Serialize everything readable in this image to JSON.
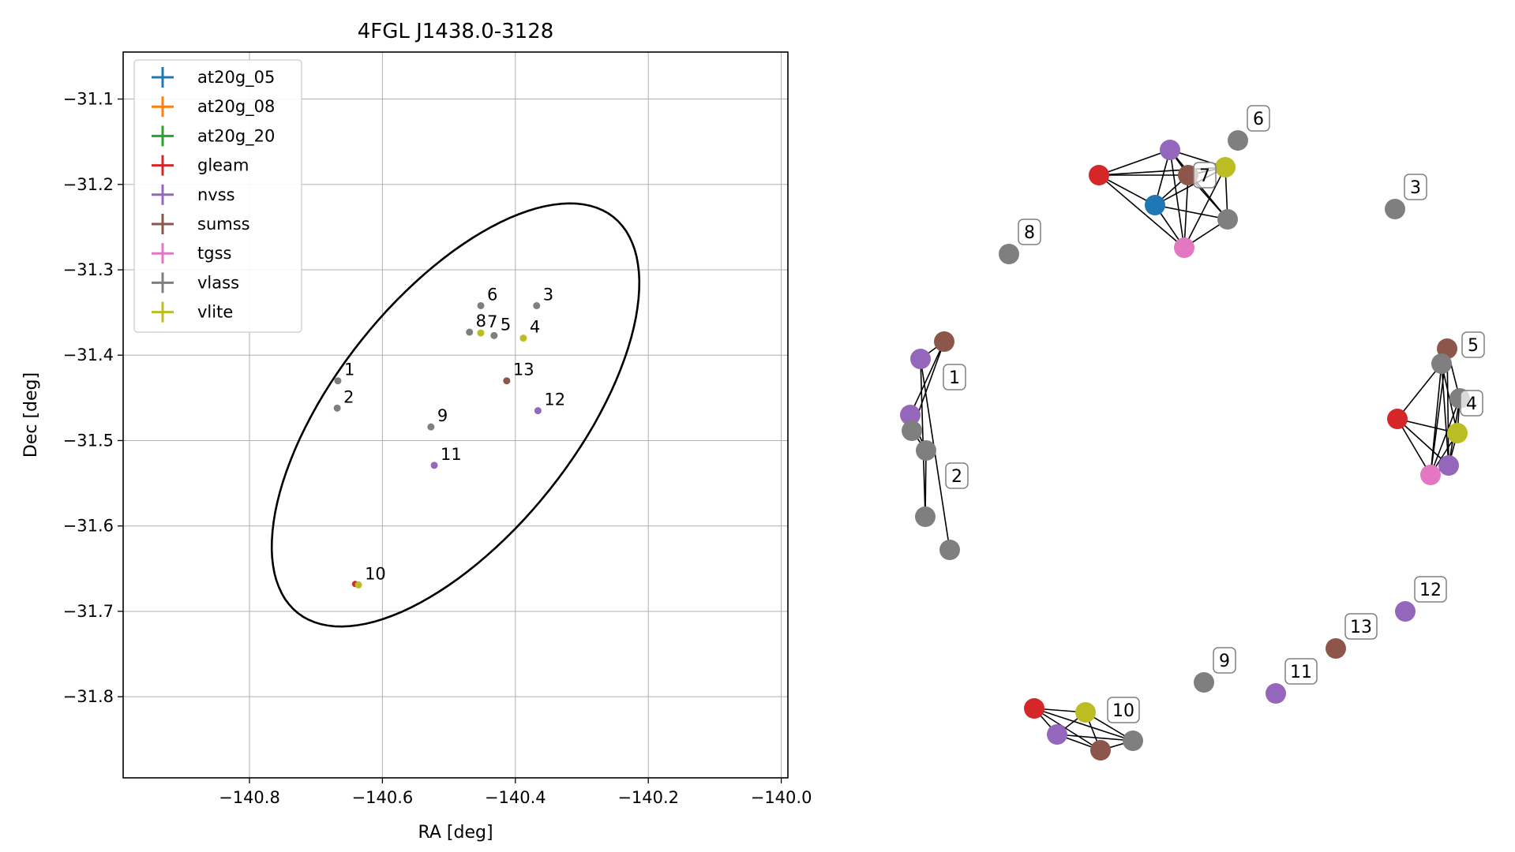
{
  "chart_data": [
    {
      "type": "scatter",
      "title": "4FGL J1438.0-3128",
      "xlabel": "RA [deg]",
      "ylabel": "Dec [deg]",
      "xlim": [
        -140.99,
        -139.99
      ],
      "ylim": [
        -31.895,
        -31.045
      ],
      "xticks": [
        -140.8,
        -140.6,
        -140.4,
        -140.2,
        -140.0
      ],
      "xtick_labels": [
        "−140.8",
        "−140.6",
        "−140.4",
        "−140.2",
        "−140.0"
      ],
      "yticks": [
        -31.1,
        -31.2,
        -31.3,
        -31.4,
        -31.5,
        -31.6,
        -31.7,
        -31.8
      ],
      "ytick_labels": [
        "−31.1",
        "−31.2",
        "−31.3",
        "−31.4",
        "−31.5",
        "−31.6",
        "−31.7",
        "−31.8"
      ],
      "grid": true,
      "legend_position": "top-left",
      "legend": [
        {
          "name": "at20g_05",
          "color": "#1f77b4"
        },
        {
          "name": "at20g_08",
          "color": "#ff7f0e"
        },
        {
          "name": "at20g_20",
          "color": "#2ca02c"
        },
        {
          "name": "gleam",
          "color": "#d62728"
        },
        {
          "name": "nvss",
          "color": "#9467bd"
        },
        {
          "name": "sumss",
          "color": "#8c564b"
        },
        {
          "name": "tgss",
          "color": "#e377c2"
        },
        {
          "name": "vlass",
          "color": "#7f7f7f"
        },
        {
          "name": "vlite",
          "color": "#bcbd22"
        }
      ],
      "ellipse": {
        "center": [
          -140.49,
          -31.47
        ],
        "semi_major": 0.335,
        "semi_minor": 0.16,
        "angle_deg": 40
      },
      "points": [
        {
          "label": "1",
          "x": -140.667,
          "y": -31.43,
          "color": "#7f7f7f"
        },
        {
          "label": "2",
          "x": -140.668,
          "y": -31.462,
          "color": "#7f7f7f"
        },
        {
          "label": "3",
          "x": -140.368,
          "y": -31.342,
          "color": "#7f7f7f"
        },
        {
          "label": "4",
          "x": -140.388,
          "y": -31.38,
          "color": "#bcbd22"
        },
        {
          "label": "5",
          "x": -140.432,
          "y": -31.377,
          "color": "#7f7f7f"
        },
        {
          "label": "6",
          "x": -140.452,
          "y": -31.342,
          "color": "#7f7f7f"
        },
        {
          "label": "7",
          "x": -140.452,
          "y": -31.374,
          "color": "#bcbd22"
        },
        {
          "label": "8",
          "x": -140.469,
          "y": -31.373,
          "color": "#7f7f7f"
        },
        {
          "label": "9",
          "x": -140.527,
          "y": -31.484,
          "color": "#7f7f7f"
        },
        {
          "label": "10",
          "x": -140.636,
          "y": -31.669,
          "color": "#bcbd22"
        },
        {
          "label": "11",
          "x": -140.522,
          "y": -31.529,
          "color": "#9467bd"
        },
        {
          "label": "12",
          "x": -140.366,
          "y": -31.465,
          "color": "#9467bd"
        },
        {
          "label": "13",
          "x": -140.413,
          "y": -31.43,
          "color": "#8c564b"
        }
      ],
      "extra_points": [
        {
          "x": -140.641,
          "y": -31.668,
          "color": "#d62728"
        }
      ]
    },
    {
      "type": "network",
      "nodes": [
        {
          "id": "n7_red",
          "color": "#d62728"
        },
        {
          "id": "n7_purple",
          "color": "#9467bd"
        },
        {
          "id": "n7_brown",
          "color": "#8c564b"
        },
        {
          "id": "n7_yellow",
          "color": "#bcbd22"
        },
        {
          "id": "n7_blue",
          "color": "#1f77b4"
        },
        {
          "id": "n7_gray",
          "color": "#7f7f7f"
        },
        {
          "id": "n7_pink",
          "color": "#e377c2"
        },
        {
          "id": "n6",
          "color": "#7f7f7f",
          "label": "6"
        },
        {
          "id": "n3",
          "color": "#7f7f7f",
          "label": "3"
        },
        {
          "id": "n8",
          "color": "#7f7f7f",
          "label": "8"
        },
        {
          "id": "n1_brown",
          "color": "#8c564b"
        },
        {
          "id": "n1_purple",
          "color": "#9467bd"
        },
        {
          "id": "n2_purple",
          "color": "#9467bd"
        },
        {
          "id": "n1_gray",
          "color": "#7f7f7f"
        },
        {
          "id": "n2_gray",
          "color": "#7f7f7f"
        },
        {
          "id": "n2_gray_b",
          "color": "#7f7f7f"
        },
        {
          "id": "n1_gray_b",
          "color": "#7f7f7f"
        },
        {
          "id": "n5_brown",
          "color": "#8c564b"
        },
        {
          "id": "n5_gray",
          "color": "#7f7f7f"
        },
        {
          "id": "n4_gray",
          "color": "#7f7f7f"
        },
        {
          "id": "n4_red",
          "color": "#d62728"
        },
        {
          "id": "n4_yellow",
          "color": "#bcbd22"
        },
        {
          "id": "n4_purple",
          "color": "#9467bd"
        },
        {
          "id": "n4_pink",
          "color": "#e377c2"
        },
        {
          "id": "n12",
          "color": "#9467bd",
          "label": "12"
        },
        {
          "id": "n13",
          "color": "#8c564b",
          "label": "13"
        },
        {
          "id": "n11",
          "color": "#9467bd",
          "label": "11"
        },
        {
          "id": "n9",
          "color": "#7f7f7f",
          "label": "9"
        },
        {
          "id": "n10_red",
          "color": "#d62728"
        },
        {
          "id": "n10_yellow",
          "color": "#bcbd22"
        },
        {
          "id": "n10_purple",
          "color": "#9467bd"
        },
        {
          "id": "n10_brown",
          "color": "#8c564b"
        },
        {
          "id": "n10_gray",
          "color": "#7f7f7f"
        }
      ],
      "cluster_labels": [
        "7",
        "1",
        "2",
        "5",
        "4",
        "10"
      ],
      "edges": [
        [
          "n7_red",
          "n7_purple"
        ],
        [
          "n7_red",
          "n7_brown"
        ],
        [
          "n7_red",
          "n7_yellow"
        ],
        [
          "n7_red",
          "n7_blue"
        ],
        [
          "n7_red",
          "n7_pink"
        ],
        [
          "n7_purple",
          "n7_brown"
        ],
        [
          "n7_purple",
          "n7_yellow"
        ],
        [
          "n7_purple",
          "n7_blue"
        ],
        [
          "n7_purple",
          "n7_gray"
        ],
        [
          "n7_purple",
          "n7_pink"
        ],
        [
          "n7_brown",
          "n7_yellow"
        ],
        [
          "n7_brown",
          "n7_blue"
        ],
        [
          "n7_brown",
          "n7_gray"
        ],
        [
          "n7_brown",
          "n7_pink"
        ],
        [
          "n7_yellow",
          "n7_blue"
        ],
        [
          "n7_yellow",
          "n7_gray"
        ],
        [
          "n7_yellow",
          "n7_pink"
        ],
        [
          "n7_blue",
          "n7_gray"
        ],
        [
          "n7_blue",
          "n7_pink"
        ],
        [
          "n7_gray",
          "n7_pink"
        ],
        [
          "n1_brown",
          "n1_purple"
        ],
        [
          "n1_brown",
          "n1_gray"
        ],
        [
          "n1_brown",
          "n2_purple"
        ],
        [
          "n1_purple",
          "n1_gray_b"
        ],
        [
          "n1_purple",
          "n2_gray_b"
        ],
        [
          "n2_purple",
          "n2_gray"
        ],
        [
          "n2_purple",
          "n1_gray"
        ],
        [
          "n1_gray",
          "n2_gray"
        ],
        [
          "n2_gray",
          "n2_gray_b"
        ],
        [
          "n4_red",
          "n5_gray"
        ],
        [
          "n4_red",
          "n4_pink"
        ],
        [
          "n4_red",
          "n4_purple"
        ],
        [
          "n4_red",
          "n4_yellow"
        ],
        [
          "n5_brown",
          "n4_gray"
        ],
        [
          "n5_brown",
          "n4_purple"
        ],
        [
          "n5_brown",
          "n4_pink"
        ],
        [
          "n5_gray",
          "n4_yellow"
        ],
        [
          "n5_gray",
          "n4_purple"
        ],
        [
          "n5_gray",
          "n4_pink"
        ],
        [
          "n4_gray",
          "n4_yellow"
        ],
        [
          "n4_gray",
          "n4_purple"
        ],
        [
          "n4_gray",
          "n4_pink"
        ],
        [
          "n4_yellow",
          "n4_purple"
        ],
        [
          "n4_yellow",
          "n4_pink"
        ],
        [
          "n4_purple",
          "n4_pink"
        ],
        [
          "n10_red",
          "n10_yellow"
        ],
        [
          "n10_red",
          "n10_purple"
        ],
        [
          "n10_red",
          "n10_brown"
        ],
        [
          "n10_red",
          "n10_gray"
        ],
        [
          "n10_yellow",
          "n10_purple"
        ],
        [
          "n10_yellow",
          "n10_brown"
        ],
        [
          "n10_yellow",
          "n10_gray"
        ],
        [
          "n10_purple",
          "n10_brown"
        ],
        [
          "n10_purple",
          "n10_gray"
        ],
        [
          "n10_brown",
          "n10_gray"
        ]
      ]
    }
  ]
}
